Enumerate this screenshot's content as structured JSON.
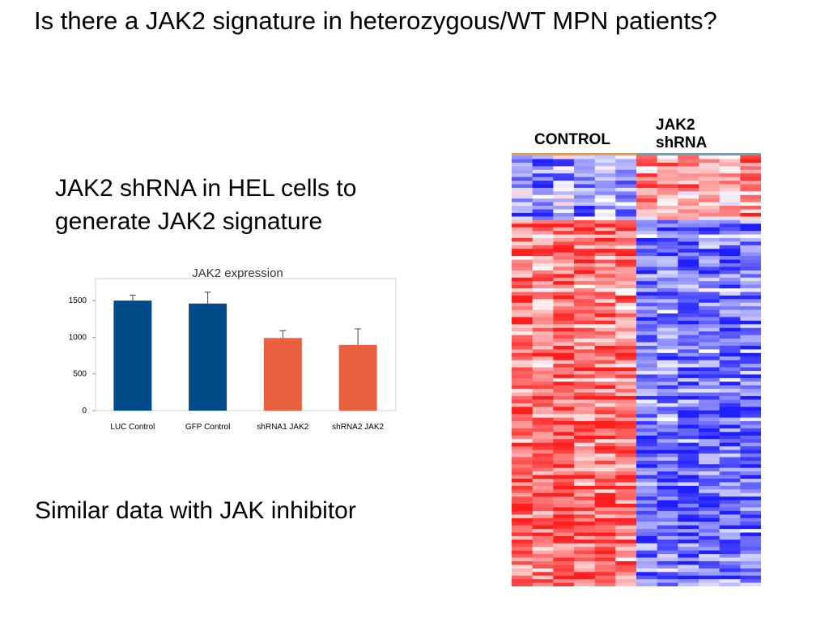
{
  "slide": {
    "title": "Is there a JAK2 signature in heterozygous/WT MPN patients?",
    "subtitle": "JAK2 shRNA in HEL cells to generate JAK2 signature",
    "footer": "Similar data with JAK inhibitor"
  },
  "chart_data": [
    {
      "type": "bar",
      "title": "JAK2 expression",
      "categories": [
        "LUC Control",
        "GFP Control",
        "shRNA1 JAK2",
        "shRNA2 JAK2"
      ],
      "values": [
        1500,
        1460,
        990,
        895
      ],
      "error": [
        75,
        155,
        100,
        220
      ],
      "ylim": [
        0,
        1800
      ],
      "yticks": [
        0,
        500,
        1000,
        1500
      ],
      "bar_colors": [
        "#004a88",
        "#004a88",
        "#e8603f",
        "#e8603f"
      ],
      "grid": false,
      "xlabel": "",
      "ylabel": ""
    },
    {
      "type": "heatmap",
      "column_groups": [
        {
          "label": "CONTROL",
          "columns": 6,
          "color": "#e9a13a"
        },
        {
          "label": "JAK2 shRNA",
          "columns": 6,
          "color": "#6aa3a8"
        }
      ],
      "colors": {
        "high": "#ff1e1e",
        "mid": "#ffffff",
        "low": "#1e1eff"
      }
    }
  ]
}
